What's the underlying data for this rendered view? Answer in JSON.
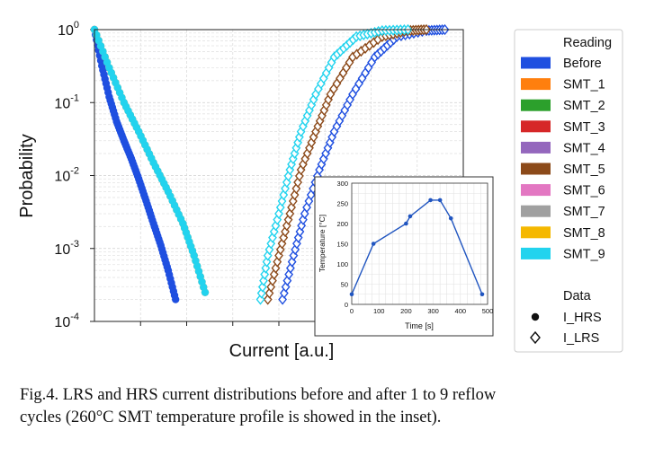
{
  "chart_data": [
    {
      "type": "scatter",
      "title": "",
      "xlabel": "Current [a.u.]",
      "ylabel": "Probability",
      "yscale": "log",
      "ylim": [
        0.0001,
        1
      ],
      "xlim": [
        0,
        1
      ],
      "yticks": [
        {
          "base": "10",
          "exp": "-4"
        },
        {
          "base": "10",
          "exp": "-3"
        },
        {
          "base": "10",
          "exp": "-2"
        },
        {
          "base": "10",
          "exp": "-1"
        },
        {
          "base": "10",
          "exp": "0"
        }
      ],
      "grid": true,
      "legend": {
        "title": "Reading",
        "entries": [
          {
            "name": "Before",
            "color": "#1f4fe0"
          },
          {
            "name": "SMT_1",
            "color": "#ff7f0e"
          },
          {
            "name": "SMT_2",
            "color": "#2ca02c"
          },
          {
            "name": "SMT_3",
            "color": "#d62728"
          },
          {
            "name": "SMT_4",
            "color": "#9467bd"
          },
          {
            "name": "SMT_5",
            "color": "#8c4a1a"
          },
          {
            "name": "SMT_6",
            "color": "#e377c2"
          },
          {
            "name": "SMT_7",
            "color": "#a0a0a0"
          },
          {
            "name": "SMT_8",
            "color": "#f5b800"
          },
          {
            "name": "SMT_9",
            "color": "#22d3ee"
          }
        ],
        "data_title": "Data",
        "data_entries": [
          {
            "name": "I_HRS",
            "marker": "circle"
          },
          {
            "name": "I_LRS",
            "marker": "diamond"
          }
        ]
      },
      "series": [
        {
          "name": "Before",
          "marker": "circle",
          "x": [
            0.0,
            0.02,
            0.04,
            0.06,
            0.08,
            0.1,
            0.12,
            0.14,
            0.16,
            0.18,
            0.2,
            0.22
          ],
          "y": [
            1,
            0.32,
            0.12,
            0.055,
            0.03,
            0.017,
            0.009,
            0.0045,
            0.0022,
            0.0011,
            0.0005,
            0.0002
          ]
        },
        {
          "name": "SMT_1",
          "marker": "circle",
          "x": [
            0.0,
            0.04,
            0.08,
            0.12,
            0.16,
            0.2,
            0.24,
            0.27,
            0.3
          ],
          "y": [
            1,
            0.3,
            0.1,
            0.04,
            0.015,
            0.006,
            0.0022,
            0.0008,
            0.00025
          ]
        },
        {
          "name": "SMT_9",
          "marker": "circle",
          "x": [
            0.0,
            0.04,
            0.08,
            0.12,
            0.16,
            0.2,
            0.24,
            0.27,
            0.3
          ],
          "y": [
            1,
            0.3,
            0.1,
            0.04,
            0.015,
            0.006,
            0.0022,
            0.0008,
            0.00025
          ]
        },
        {
          "name": "Before",
          "marker": "diamond",
          "x": [
            0.51,
            0.54,
            0.57,
            0.61,
            0.65,
            0.7,
            0.76,
            0.82,
            0.9,
            0.95
          ],
          "y": [
            0.0002,
            0.0008,
            0.003,
            0.012,
            0.04,
            0.13,
            0.42,
            0.8,
            0.97,
            1
          ]
        },
        {
          "name": "SMT_5",
          "marker": "diamond",
          "x": [
            0.47,
            0.5,
            0.53,
            0.56,
            0.6,
            0.64,
            0.7,
            0.78,
            0.85,
            0.9
          ],
          "y": [
            0.0002,
            0.0008,
            0.003,
            0.012,
            0.04,
            0.13,
            0.42,
            0.8,
            0.97,
            1
          ]
        },
        {
          "name": "SMT_9",
          "marker": "diamond",
          "x": [
            0.45,
            0.47,
            0.5,
            0.53,
            0.56,
            0.6,
            0.65,
            0.71,
            0.78,
            0.85
          ],
          "y": [
            0.0002,
            0.0008,
            0.003,
            0.012,
            0.04,
            0.13,
            0.42,
            0.8,
            0.97,
            1
          ]
        }
      ]
    },
    {
      "type": "line",
      "title": "",
      "xlabel": "Time [s]",
      "ylabel": "Temperature [°C]",
      "xlim": [
        0,
        500
      ],
      "ylim": [
        0,
        300
      ],
      "xticks": [
        0,
        100,
        200,
        300,
        400,
        500
      ],
      "yticks": [
        0,
        50,
        100,
        150,
        200,
        250,
        300
      ],
      "grid": true,
      "series": [
        {
          "name": "SMT temperature profile",
          "color": "#2055c0",
          "x": [
            0,
            80,
            200,
            215,
            290,
            325,
            365,
            480
          ],
          "y": [
            25,
            150,
            200,
            218,
            258,
            258,
            213,
            25
          ]
        }
      ]
    }
  ],
  "caption": {
    "line1": "Fig.4. LRS and HRS current distributions before and after 1 to 9 reflow",
    "line2": "cycles (260°C SMT temperature profile is showed in the inset)."
  }
}
